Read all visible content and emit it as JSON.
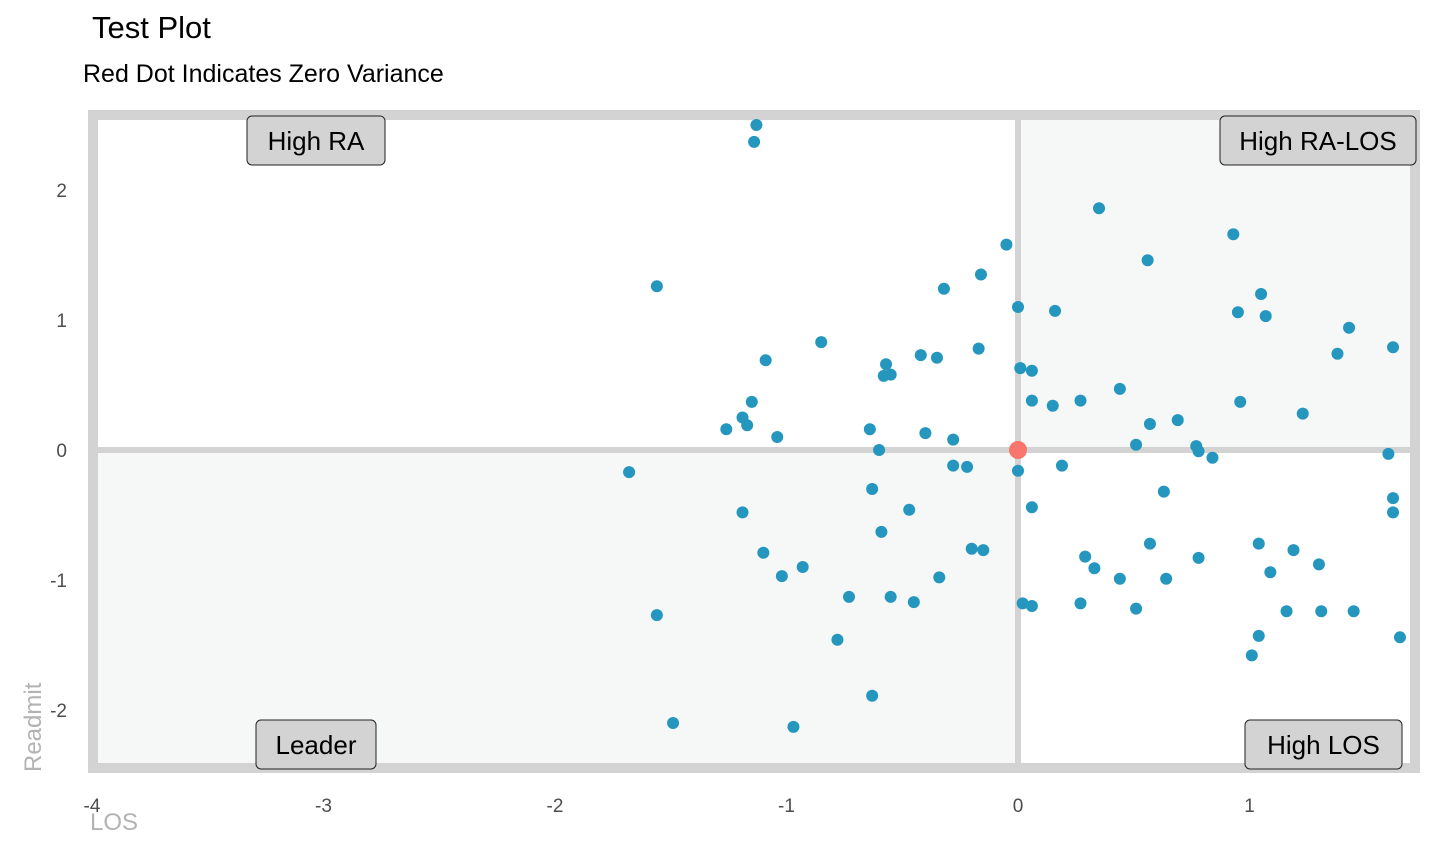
{
  "chart_data": {
    "type": "scatter",
    "title": "Test Plot",
    "subtitle": "Red Dot Indicates Zero Variance",
    "xlabel": "LOS",
    "ylabel": "Readmit",
    "xlim": [
      -4,
      1.7
    ],
    "ylim": [
      -2.5,
      2.6
    ],
    "x_ticks": [
      -4,
      -3,
      -2,
      -1,
      0,
      1
    ],
    "y_ticks": [
      2,
      1,
      0,
      -1,
      -2
    ],
    "grid": false,
    "quadrant_labels": {
      "top_left": "High RA",
      "top_right": "High RA-LOS",
      "bottom_left": "Leader",
      "bottom_right": "High LOS"
    },
    "colors": {
      "points": "#2596be",
      "zero_point": "#f8766d",
      "panel_border": "#d3d3d3",
      "shaded_quadrant": "#f6f8f8",
      "label_fill": "#d3d3d3"
    },
    "zero_point": {
      "x": 0,
      "y": 0
    },
    "points": [
      {
        "x": -1.13,
        "y": 2.5
      },
      {
        "x": -1.14,
        "y": 2.37
      },
      {
        "x": -1.56,
        "y": 1.26
      },
      {
        "x": -0.05,
        "y": 1.58
      },
      {
        "x": -0.16,
        "y": 1.35
      },
      {
        "x": -0.32,
        "y": 1.24
      },
      {
        "x": -0.85,
        "y": 0.83
      },
      {
        "x": -1.09,
        "y": 0.69
      },
      {
        "x": -0.42,
        "y": 0.73
      },
      {
        "x": -0.35,
        "y": 0.71
      },
      {
        "x": -0.57,
        "y": 0.66
      },
      {
        "x": -0.58,
        "y": 0.57
      },
      {
        "x": -0.55,
        "y": 0.58
      },
      {
        "x": -0.17,
        "y": 0.78
      },
      {
        "x": -1.15,
        "y": 0.37
      },
      {
        "x": -1.19,
        "y": 0.25
      },
      {
        "x": -1.17,
        "y": 0.19
      },
      {
        "x": -1.26,
        "y": 0.16
      },
      {
        "x": -1.04,
        "y": 0.1
      },
      {
        "x": -0.64,
        "y": 0.16
      },
      {
        "x": -0.4,
        "y": 0.13
      },
      {
        "x": -0.28,
        "y": 0.08
      },
      {
        "x": -0.6,
        "y": 0.0
      },
      {
        "x": -1.68,
        "y": -0.17
      },
      {
        "x": -0.28,
        "y": -0.12
      },
      {
        "x": -0.22,
        "y": -0.13
      },
      {
        "x": -0.63,
        "y": -0.3
      },
      {
        "x": -0.47,
        "y": -0.46
      },
      {
        "x": -1.19,
        "y": -0.48
      },
      {
        "x": -0.59,
        "y": -0.63
      },
      {
        "x": -1.1,
        "y": -0.79
      },
      {
        "x": -0.2,
        "y": -0.76
      },
      {
        "x": -0.15,
        "y": -0.77
      },
      {
        "x": -0.93,
        "y": -0.9
      },
      {
        "x": -1.02,
        "y": -0.97
      },
      {
        "x": -0.34,
        "y": -0.98
      },
      {
        "x": -0.73,
        "y": -1.13
      },
      {
        "x": -0.55,
        "y": -1.13
      },
      {
        "x": -0.45,
        "y": -1.17
      },
      {
        "x": -1.56,
        "y": -1.27
      },
      {
        "x": -0.78,
        "y": -1.46
      },
      {
        "x": -0.63,
        "y": -1.89
      },
      {
        "x": -1.49,
        "y": -2.1
      },
      {
        "x": -0.97,
        "y": -2.13
      },
      {
        "x": 0.35,
        "y": 1.86
      },
      {
        "x": 0.93,
        "y": 1.66
      },
      {
        "x": 0.56,
        "y": 1.46
      },
      {
        "x": 1.05,
        "y": 1.2
      },
      {
        "x": 0.95,
        "y": 1.06
      },
      {
        "x": 1.07,
        "y": 1.03
      },
      {
        "x": 0.0,
        "y": 1.1
      },
      {
        "x": 0.16,
        "y": 1.07
      },
      {
        "x": 1.43,
        "y": 0.94
      },
      {
        "x": 1.38,
        "y": 0.74
      },
      {
        "x": 1.62,
        "y": 0.79
      },
      {
        "x": 0.01,
        "y": 0.63
      },
      {
        "x": 0.06,
        "y": 0.61
      },
      {
        "x": 0.44,
        "y": 0.47
      },
      {
        "x": 0.06,
        "y": 0.38
      },
      {
        "x": 0.15,
        "y": 0.34
      },
      {
        "x": 0.27,
        "y": 0.38
      },
      {
        "x": 0.96,
        "y": 0.37
      },
      {
        "x": 1.23,
        "y": 0.28
      },
      {
        "x": 0.69,
        "y": 0.23
      },
      {
        "x": 0.57,
        "y": 0.2
      },
      {
        "x": 0.51,
        "y": 0.04
      },
      {
        "x": 0.77,
        "y": 0.03
      },
      {
        "x": 0.78,
        "y": -0.01
      },
      {
        "x": 0.84,
        "y": -0.06
      },
      {
        "x": 1.6,
        "y": -0.03
      },
      {
        "x": 0.0,
        "y": -0.16
      },
      {
        "x": 0.19,
        "y": -0.12
      },
      {
        "x": 0.63,
        "y": -0.32
      },
      {
        "x": 1.62,
        "y": -0.37
      },
      {
        "x": 1.62,
        "y": -0.48
      },
      {
        "x": 0.06,
        "y": -0.44
      },
      {
        "x": 0.57,
        "y": -0.72
      },
      {
        "x": 1.04,
        "y": -0.72
      },
      {
        "x": 1.19,
        "y": -0.77
      },
      {
        "x": 0.78,
        "y": -0.83
      },
      {
        "x": 0.29,
        "y": -0.82
      },
      {
        "x": 0.33,
        "y": -0.91
      },
      {
        "x": 1.3,
        "y": -0.88
      },
      {
        "x": 1.09,
        "y": -0.94
      },
      {
        "x": 0.44,
        "y": -0.99
      },
      {
        "x": 0.64,
        "y": -0.99
      },
      {
        "x": 0.02,
        "y": -1.18
      },
      {
        "x": 0.06,
        "y": -1.2
      },
      {
        "x": 0.27,
        "y": -1.18
      },
      {
        "x": 0.51,
        "y": -1.22
      },
      {
        "x": 1.16,
        "y": -1.24
      },
      {
        "x": 1.31,
        "y": -1.24
      },
      {
        "x": 1.45,
        "y": -1.24
      },
      {
        "x": 1.04,
        "y": -1.43
      },
      {
        "x": 1.65,
        "y": -1.44
      },
      {
        "x": 1.01,
        "y": -1.58
      }
    ]
  }
}
